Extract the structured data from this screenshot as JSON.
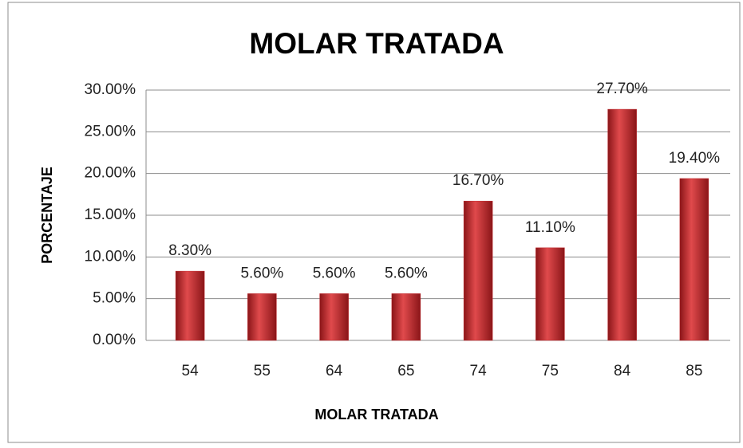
{
  "chart_data": {
    "type": "bar",
    "title": "MOLAR TRATADA",
    "x_label": "MOLAR TRATADA",
    "y_label": "PORCENTAJE",
    "categories": [
      "54",
      "55",
      "64",
      "65",
      "74",
      "75",
      "84",
      "85"
    ],
    "values": [
      8.3,
      5.6,
      5.6,
      5.6,
      16.7,
      11.1,
      27.7,
      19.4
    ],
    "value_labels": [
      "8.30%",
      "5.60%",
      "5.60%",
      "5.60%",
      "16.70%",
      "11.10%",
      "27.70%",
      "19.40%"
    ],
    "color": "#c0282c",
    "ylim": [
      0,
      30
    ],
    "yticks": [
      {
        "value": 0,
        "label": "0.00%"
      },
      {
        "value": 5,
        "label": "5.00%"
      },
      {
        "value": 10,
        "label": "10.00%"
      },
      {
        "value": 15,
        "label": "15.00%"
      },
      {
        "value": 20,
        "label": "20.00%"
      },
      {
        "value": 25,
        "label": "25.00%"
      },
      {
        "value": 30,
        "label": "30.00%"
      }
    ],
    "grid": true
  }
}
